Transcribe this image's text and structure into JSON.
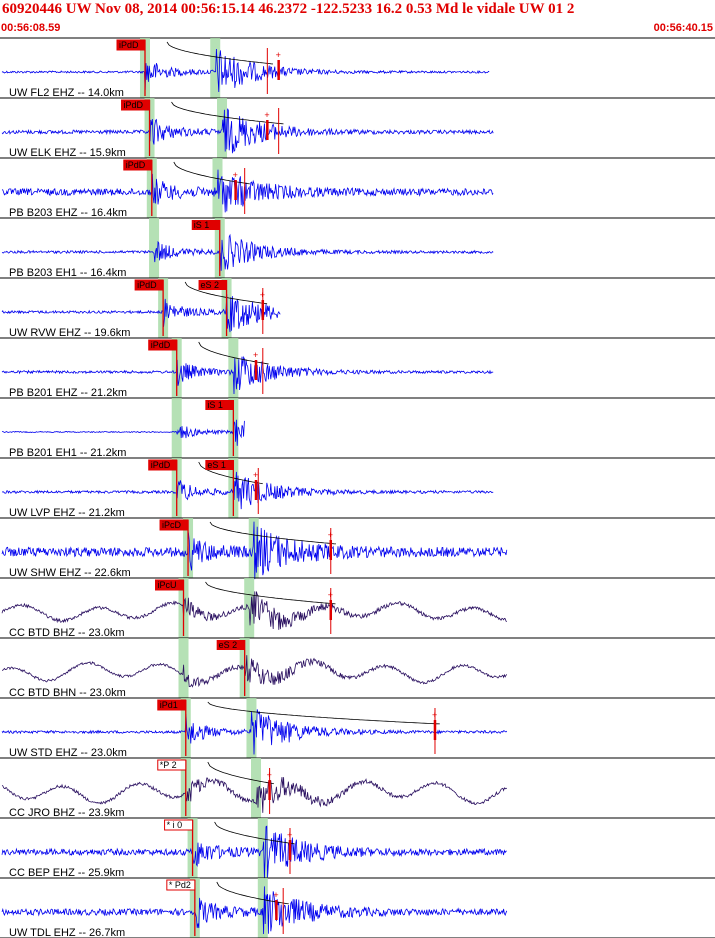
{
  "header": {
    "title": "60920446 UW Nov 08, 2014 00:56:15.14   46.2372 -122.5233 16.2 0.53 Md le vidale UW 01   2",
    "start_time": "00:56:08.59",
    "end_time": "00:56:40.15"
  },
  "colors": {
    "trace": "#0000ee",
    "trace_dark": "#2a1060",
    "pick": "#e00000",
    "window": "#a8dca8",
    "divider": "#000000"
  },
  "chart_data": {
    "type": "line",
    "title": "60920446 UW Nov 08, 2014 00:56:15.14   46.2372 -122.5233 16.2 0.53 Md le vidale UW 01   2",
    "xlabel": "",
    "ylabel": "",
    "x_start": "00:56:08.59",
    "x_end": "00:56:40.15",
    "xlim": [
      0,
      31.56
    ],
    "grid": false,
    "legend": "none",
    "traces": [
      {
        "label": "UW FL2 EHZ -- 14.0km",
        "style": "blue",
        "p_label": "iPdD",
        "p_time": 6.4,
        "s_label": "",
        "s_time": 9.5,
        "end_time": 11.8,
        "amp_time": 12.3,
        "plot_end": 21.6,
        "noise": 0.04,
        "amp": 1.0,
        "lowfreq": 0
      },
      {
        "label": "UW ELK EHZ -- 15.9km",
        "style": "blue",
        "p_label": "iPdD",
        "p_time": 6.6,
        "s_label": "",
        "s_time": 9.8,
        "end_time": 12.3,
        "amp_time": 11.8,
        "plot_end": 21.8,
        "noise": 0.07,
        "amp": 1.0,
        "lowfreq": 0
      },
      {
        "label": "PB B203 EHZ -- 16.4km",
        "style": "blue",
        "p_label": "iPdD",
        "p_time": 6.7,
        "s_label": "",
        "s_time": 9.6,
        "end_time": 10.8,
        "amp_time": 10.4,
        "plot_end": 21.8,
        "noise": 0.13,
        "amp": 0.9,
        "lowfreq": 0
      },
      {
        "label": "PB B203 EH1 -- 16.4km",
        "style": "blue",
        "p_label": "",
        "p_time": 6.8,
        "s_label": "iS 1",
        "s_time": 9.7,
        "end_time": 0,
        "amp_time": 0,
        "plot_end": 21.8,
        "noise": 0.05,
        "amp": 0.8,
        "lowfreq": 0
      },
      {
        "label": "UW RVW EHZ -- 19.6km",
        "style": "blue",
        "p_label": "iPdD",
        "p_time": 7.2,
        "s_label": "eS 2",
        "s_time": 10.0,
        "end_time": 11.6,
        "amp_time": 11.6,
        "plot_end": 12.4,
        "noise": 0.05,
        "amp": 0.85,
        "lowfreq": 0
      },
      {
        "label": "PB B201 EHZ -- 21.2km",
        "style": "blue",
        "p_label": "iPdD",
        "p_time": 7.8,
        "s_label": "",
        "s_time": 10.3,
        "end_time": 11.6,
        "amp_time": 11.3,
        "plot_end": 21.8,
        "noise": 0.05,
        "amp": 0.85,
        "lowfreq": 0
      },
      {
        "label": "PB B201 EH1 -- 21.2km",
        "style": "blue",
        "p_label": "",
        "p_time": 7.8,
        "s_label": "iS 1",
        "s_time": 10.3,
        "end_time": 0,
        "amp_time": 0,
        "plot_end": 10.8,
        "noise": 0.02,
        "amp": 0.6,
        "lowfreq": 0
      },
      {
        "label": "UW LVP EHZ -- 21.2km",
        "style": "blue",
        "p_label": "iPdD",
        "p_time": 7.8,
        "s_label": "eS 1",
        "s_time": 10.3,
        "end_time": 11.4,
        "amp_time": 11.3,
        "plot_end": 21.8,
        "noise": 0.05,
        "amp": 0.8,
        "lowfreq": 0
      },
      {
        "label": "UW SHW EHZ -- 22.6km",
        "style": "blue",
        "p_label": "iPcD",
        "p_time": 8.3,
        "s_label": "",
        "s_time": 11.2,
        "end_time": 14.6,
        "amp_time": 14.6,
        "plot_end": 22.4,
        "noise": 0.18,
        "amp": 1.0,
        "lowfreq": 0
      },
      {
        "label": "CC BTD BHZ -- 23.0km",
        "style": "dark",
        "p_label": "iPcU",
        "p_time": 8.1,
        "s_label": "",
        "s_time": 11.0,
        "end_time": 14.6,
        "amp_time": 14.6,
        "plot_end": 22.4,
        "noise": 0.06,
        "amp": 0.75,
        "lowfreq": 0.35
      },
      {
        "label": "CC BTD BHN -- 23.0km",
        "style": "dark",
        "p_label": "",
        "p_time": 8.1,
        "s_label": "eS 2",
        "s_time": 10.8,
        "end_time": 0,
        "amp_time": 0,
        "plot_end": 22.4,
        "noise": 0.05,
        "amp": 0.55,
        "lowfreq": 0.4
      },
      {
        "label": "UW STD EHZ -- 23.0km",
        "style": "blue",
        "p_label": "iPd1",
        "p_time": 8.2,
        "s_label": "",
        "s_time": 11.1,
        "end_time": 19.2,
        "amp_time": 19.2,
        "plot_end": 22.4,
        "noise": 0.05,
        "amp": 1.0,
        "lowfreq": 0
      },
      {
        "label": "CC JRO BHZ -- 23.9km",
        "style": "dark",
        "p_label": "*P 2",
        "p_time": 8.2,
        "s_label": "",
        "s_time": 11.3,
        "end_time": 11.9,
        "amp_time": 11.9,
        "plot_end": 22.4,
        "noise": 0.06,
        "amp": 0.75,
        "lowfreq": 0.45
      },
      {
        "label": "CC BEP EHZ -- 25.9km",
        "style": "blue",
        "p_label": "* i 0",
        "p_time": 8.5,
        "s_label": "",
        "s_time": 11.6,
        "end_time": 12.8,
        "amp_time": 12.8,
        "plot_end": 22.4,
        "noise": 0.12,
        "amp": 1.0,
        "lowfreq": 0
      },
      {
        "label": "UW TDL EHZ -- 26.7km",
        "style": "blue",
        "p_label": "* Pd2",
        "p_time": 8.6,
        "s_label": "",
        "s_time": 11.6,
        "end_time": 12.5,
        "amp_time": 12.2,
        "plot_end": 22.4,
        "noise": 0.12,
        "amp": 1.0,
        "lowfreq": 0
      }
    ]
  }
}
